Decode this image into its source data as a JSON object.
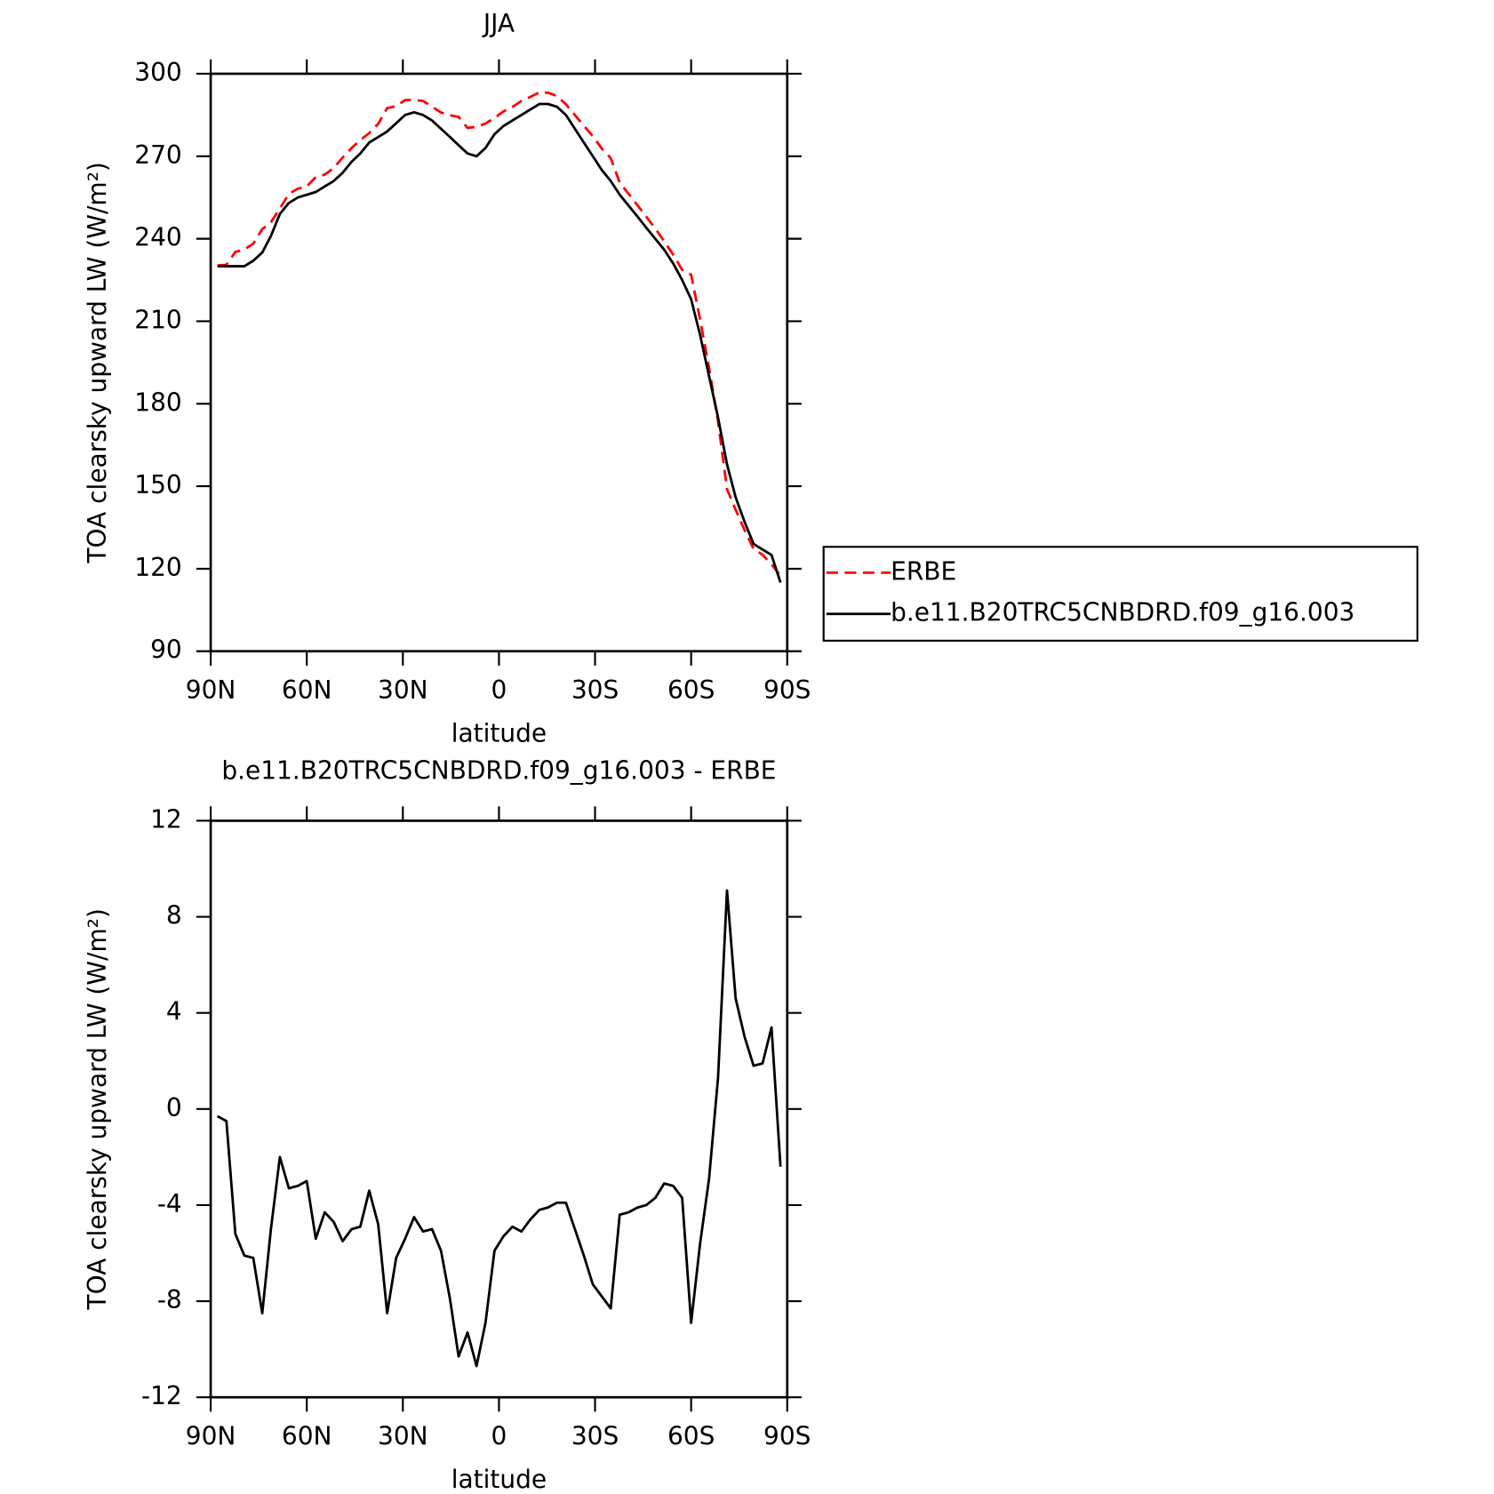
{
  "chart_data": [
    {
      "type": "line",
      "title": "JJA",
      "xlabel": "latitude",
      "ylabel": "TOA clearsky upward LW (W/m²)",
      "x": [
        87.9,
        85.1,
        82.3,
        79.5,
        76.7,
        73.9,
        71.2,
        68.4,
        65.6,
        62.8,
        60.0,
        57.2,
        54.4,
        51.6,
        48.8,
        46.0,
        43.3,
        40.5,
        37.7,
        34.9,
        32.1,
        29.3,
        26.5,
        23.7,
        20.9,
        18.1,
        15.3,
        12.6,
        9.8,
        7.0,
        4.2,
        1.4,
        -1.4,
        -4.2,
        -7.0,
        -9.8,
        -12.6,
        -15.3,
        -18.1,
        -20.9,
        -23.7,
        -26.5,
        -29.3,
        -32.1,
        -34.9,
        -37.7,
        -40.5,
        -43.3,
        -46.0,
        -48.8,
        -51.6,
        -54.4,
        -57.2,
        -60.0,
        -62.8,
        -65.6,
        -68.4,
        -71.2,
        -73.9,
        -76.7,
        -79.5,
        -82.3,
        -85.1,
        -87.9
      ],
      "series": [
        {
          "name": "ERBE",
          "color": "#ff0000",
          "dash": true,
          "values": [
            230.3,
            230.5,
            235.2,
            236.1,
            238.2,
            243.5,
            246.0,
            251.0,
            256.3,
            258.2,
            259.0,
            262.4,
            263.3,
            265.7,
            269.5,
            273.0,
            275.9,
            278.4,
            281.8,
            287.5,
            288.2,
            290.4,
            290.5,
            290.1,
            288.0,
            285.9,
            284.9,
            284.3,
            280.3,
            280.7,
            281.9,
            283.9,
            286.3,
            287.9,
            290.1,
            291.6,
            293.2,
            293.1,
            291.9,
            288.9,
            285.0,
            281.1,
            277.3,
            272.8,
            269.3,
            260.4,
            256.3,
            252.1,
            248.0,
            243.7,
            239.1,
            234.2,
            228.7,
            226.9,
            210.6,
            192.9,
            173.7,
            148.9,
            141.4,
            134.0,
            127.2,
            125.1,
            121.6,
            117.4
          ]
        },
        {
          "name": "b.e11.B20TRC5CNBDRD.f09_g16.003",
          "color": "#000000",
          "dash": false,
          "values": [
            230,
            230,
            230,
            230,
            232,
            235,
            241,
            249,
            253,
            255,
            256,
            257,
            259,
            261,
            264,
            268,
            271,
            275,
            277,
            279,
            282,
            285,
            286,
            285,
            283,
            280,
            277,
            274,
            271,
            270,
            273,
            278,
            281,
            283,
            285,
            287,
            289,
            289,
            288,
            285,
            280,
            275,
            270,
            265,
            261,
            256,
            252,
            248,
            244,
            240,
            236,
            231,
            225,
            218,
            205,
            190,
            175,
            158,
            146,
            137,
            129,
            127,
            125,
            115
          ]
        }
      ],
      "xlim": [
        90,
        -90
      ],
      "xticks": [
        {
          "value": 90,
          "label": "90N"
        },
        {
          "value": 60,
          "label": "60N"
        },
        {
          "value": 30,
          "label": "30N"
        },
        0,
        {
          "value": -30,
          "label": "30S"
        },
        {
          "value": -60,
          "label": "60S"
        },
        {
          "value": -90,
          "label": "90S"
        }
      ],
      "ylim": [
        90,
        300
      ],
      "yticks": [
        90,
        120,
        150,
        180,
        210,
        240,
        270,
        300
      ],
      "legend": "outside-right"
    },
    {
      "type": "line",
      "title": "b.e11.B20TRC5CNBDRD.f09_g16.003 - ERBE",
      "xlabel": "latitude",
      "ylabel": "TOA clearsky upward LW (W/m²)",
      "x": [
        87.9,
        85.1,
        82.3,
        79.5,
        76.7,
        73.9,
        71.2,
        68.4,
        65.6,
        62.8,
        60.0,
        57.2,
        54.4,
        51.6,
        48.8,
        46.0,
        43.3,
        40.5,
        37.7,
        34.9,
        32.1,
        29.3,
        26.5,
        23.7,
        20.9,
        18.1,
        15.3,
        12.6,
        9.8,
        7.0,
        4.2,
        1.4,
        -1.4,
        -4.2,
        -7.0,
        -9.8,
        -12.6,
        -15.3,
        -18.1,
        -20.9,
        -23.7,
        -26.5,
        -29.3,
        -32.1,
        -34.9,
        -37.7,
        -40.5,
        -43.3,
        -46.0,
        -48.8,
        -51.6,
        -54.4,
        -57.2,
        -60.0,
        -62.8,
        -65.6,
        -68.4,
        -71.2,
        -73.9,
        -76.7,
        -79.5,
        -82.3,
        -85.1,
        -87.9
      ],
      "values": [
        -0.3,
        -0.5,
        -5.2,
        -6.1,
        -6.2,
        -8.5,
        -5.0,
        -2.0,
        -3.3,
        -3.2,
        -3.0,
        -5.4,
        -4.3,
        -4.7,
        -5.5,
        -5.0,
        -4.9,
        -3.4,
        -4.8,
        -8.5,
        -6.2,
        -5.4,
        -4.5,
        -5.1,
        -5.0,
        -5.9,
        -7.9,
        -10.3,
        -9.3,
        -10.7,
        -8.9,
        -5.9,
        -5.3,
        -4.9,
        -5.1,
        -4.6,
        -4.2,
        -4.1,
        -3.9,
        -3.9,
        -5.0,
        -6.1,
        -7.3,
        -7.8,
        -8.3,
        -4.4,
        -4.3,
        -4.1,
        -4.0,
        -3.7,
        -3.1,
        -3.2,
        -3.7,
        -8.9,
        -5.6,
        -2.9,
        1.3,
        9.1,
        4.6,
        3.0,
        1.8,
        1.9,
        3.4,
        -2.4
      ],
      "color": "#000000",
      "xlim": [
        90,
        -90
      ],
      "xticks": [
        {
          "value": 90,
          "label": "90N"
        },
        {
          "value": 60,
          "label": "60N"
        },
        {
          "value": 30,
          "label": "30N"
        },
        0,
        {
          "value": -30,
          "label": "30S"
        },
        {
          "value": -60,
          "label": "60S"
        },
        {
          "value": -90,
          "label": "90S"
        }
      ],
      "ylim": [
        -12,
        12
      ],
      "yticks": [
        -12,
        -8,
        -4,
        0,
        4,
        8,
        12
      ]
    }
  ]
}
